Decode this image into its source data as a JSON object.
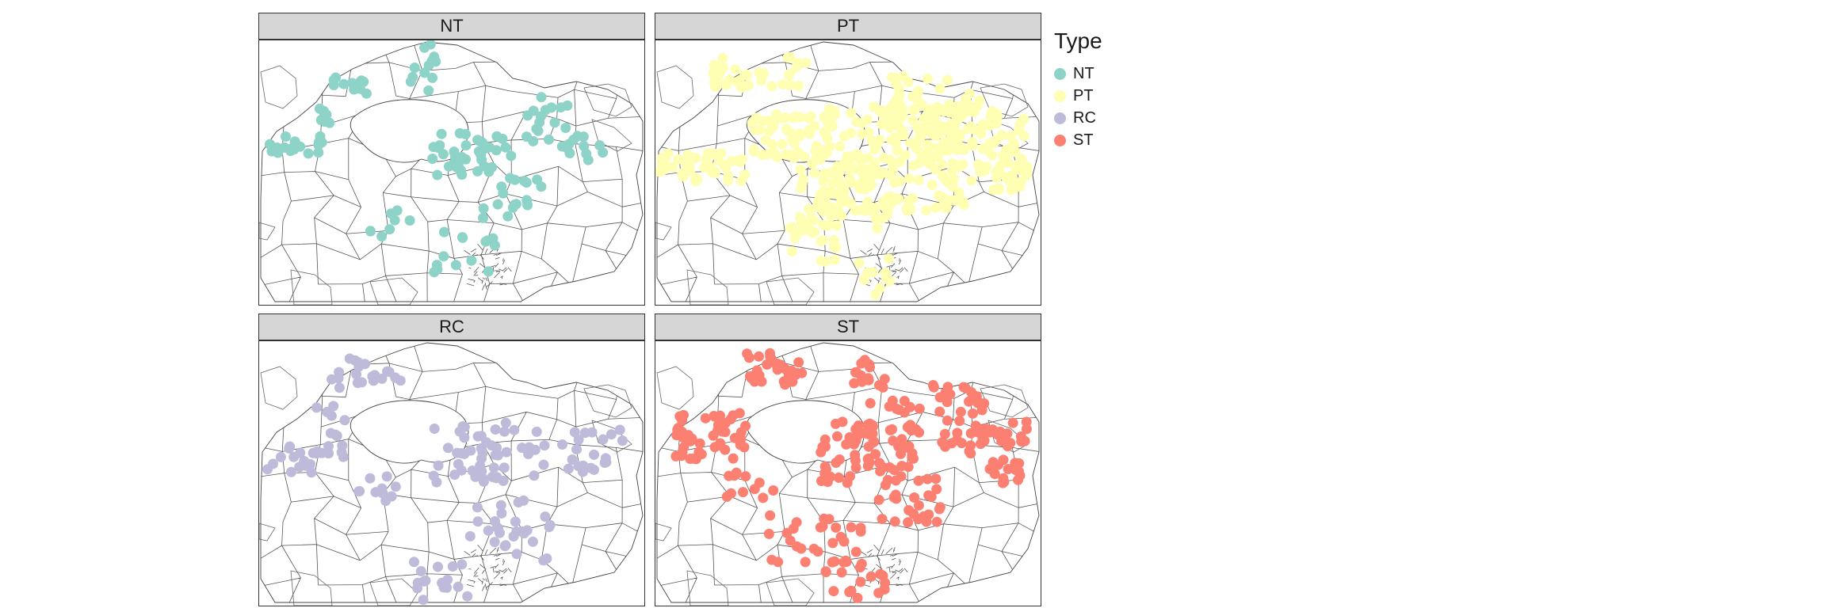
{
  "panels": [
    {
      "key": "NT",
      "label": "NT",
      "color": "#8dd3c7"
    },
    {
      "key": "PT",
      "label": "PT",
      "color": "#ffffb3"
    },
    {
      "key": "RC",
      "label": "RC",
      "color": "#bebada"
    },
    {
      "key": "ST",
      "label": "ST",
      "color": "#fb8072"
    }
  ],
  "legend": {
    "title": "Type",
    "items": [
      {
        "label": "NT",
        "color": "#8dd3c7"
      },
      {
        "label": "PT",
        "color": "#ffffb3"
      },
      {
        "label": "RC",
        "color": "#bebada"
      },
      {
        "label": "ST",
        "color": "#fb8072"
      }
    ]
  }
}
